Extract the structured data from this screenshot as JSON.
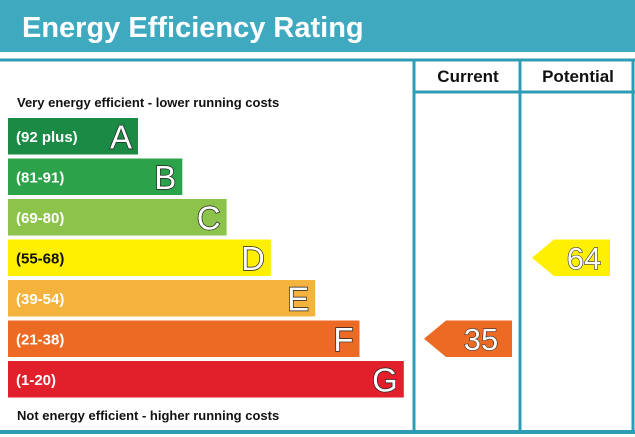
{
  "title": "Energy Efficiency Rating",
  "captions": {
    "top": "Very energy efficient - lower running costs",
    "bottom": "Not energy efficient - higher running costs"
  },
  "colors": {
    "header_teal": "#3fa9bf",
    "border_teal": "#2e9cb5",
    "bands": [
      "#1a8a45",
      "#2ca24a",
      "#8cc34a",
      "#ffef00",
      "#f4b33d",
      "#ec6a24",
      "#e2202b"
    ]
  },
  "chart_data": {
    "type": "bar",
    "title": "Energy Efficiency Rating",
    "categories": [
      "(92 plus)",
      "(81-91)",
      "(69-80)",
      "(55-68)",
      "(39-54)",
      "(21-38)",
      "(1-20)"
    ],
    "bands": [
      {
        "range": "(92 plus)",
        "letter": "A",
        "min": 92,
        "max": 100
      },
      {
        "range": "(81-91)",
        "letter": "B",
        "min": 81,
        "max": 91
      },
      {
        "range": "(69-80)",
        "letter": "C",
        "min": 69,
        "max": 80
      },
      {
        "range": "(55-68)",
        "letter": "D",
        "min": 55,
        "max": 68
      },
      {
        "range": "(39-54)",
        "letter": "E",
        "min": 39,
        "max": 54
      },
      {
        "range": "(21-38)",
        "letter": "F",
        "min": 21,
        "max": 38
      },
      {
        "range": "(1-20)",
        "letter": "G",
        "min": 1,
        "max": 20
      }
    ],
    "columns": [
      "Current",
      "Potential"
    ],
    "ratings": [
      {
        "column": "Current",
        "value": 35,
        "band": "F"
      },
      {
        "column": "Potential",
        "value": 64,
        "band": "D"
      }
    ]
  }
}
